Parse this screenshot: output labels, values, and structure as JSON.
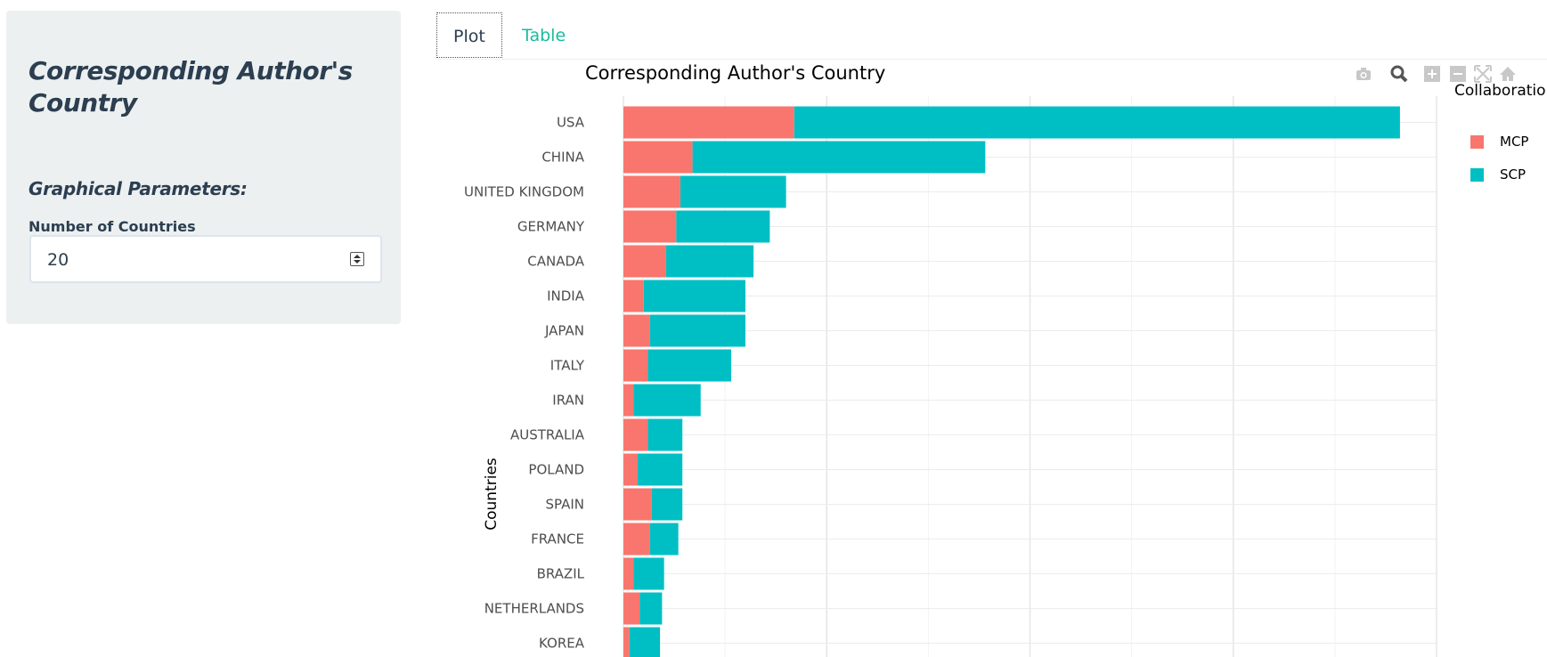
{
  "sidebar": {
    "title": "Corresponding Author's Country",
    "section": "Graphical Parameters:",
    "input_label": "Number of Countries",
    "input_value": "20"
  },
  "tabs": [
    {
      "label": "Plot",
      "active": true
    },
    {
      "label": "Table",
      "active": false
    }
  ],
  "modebar_icons": [
    "camera-icon",
    "zoom-icon",
    "zoom-in-icon",
    "zoom-out-icon",
    "autoscale-icon",
    "home-icon"
  ],
  "colors": {
    "mcp": "#F8766D",
    "scp": "#00BFC4",
    "accent": "#18bc9c"
  },
  "chart_data": {
    "type": "bar",
    "orientation": "horizontal",
    "stacked": true,
    "title": "Corresponding Author's Country",
    "ylabel": "Countries",
    "xlabel": "",
    "legend_title": "Collaboratio",
    "legend_position": "right",
    "grid": true,
    "xlim": [
      0,
      200
    ],
    "categories": [
      "USA",
      "CHINA",
      "UNITED KINGDOM",
      "GERMANY",
      "CANADA",
      "INDIA",
      "JAPAN",
      "ITALY",
      "IRAN",
      "AUSTRALIA",
      "POLAND",
      "SPAIN",
      "FRANCE",
      "BRAZIL",
      "NETHERLANDS",
      "KOREA"
    ],
    "series": [
      {
        "name": "MCP",
        "values": [
          42,
          17,
          14,
          13,
          10.5,
          5,
          6.5,
          6,
          2.5,
          6,
          3.5,
          7,
          6.5,
          2.5,
          4,
          1.5
        ]
      },
      {
        "name": "SCP",
        "values": [
          149,
          72,
          26,
          23,
          21.5,
          25,
          23.5,
          20.5,
          16.5,
          8.5,
          11,
          7.5,
          7,
          7.5,
          5.5,
          7.5
        ]
      }
    ]
  }
}
